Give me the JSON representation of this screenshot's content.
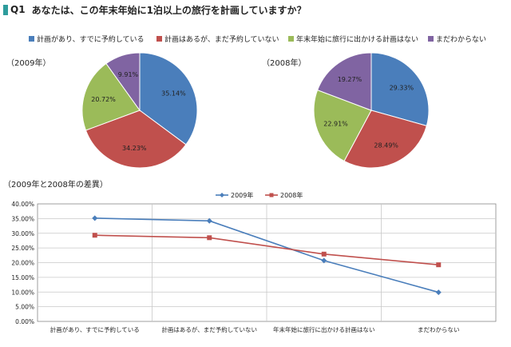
{
  "header": {
    "question_num": "Q1",
    "question_text": "あなたは、この年末年始に1泊以上の旅行を計画していますか？"
  },
  "categories": [
    "計画があり、すでに予約している",
    "計画はあるが、まだ予約していない",
    "年末年始に旅行に出かける計画はない",
    "まだわからない"
  ],
  "colors": [
    "#4a7ebb",
    "#c0504d",
    "#9bbb59",
    "#8064a2"
  ],
  "pie_2009": {
    "year_label": "（2009年）",
    "slice_labels": [
      "35.14%",
      "34.23%",
      "20.72%",
      "9.91%"
    ]
  },
  "pie_2008": {
    "year_label": "（2008年）",
    "slice_labels": [
      "29.33%",
      "28.49%",
      "22.91%",
      "19.27%"
    ]
  },
  "line_section_title": "（2009年と2008年の差異）",
  "line_y_ticks": [
    "0.00%",
    "5.00%",
    "10.00%",
    "15.00%",
    "20.00%",
    "25.00%",
    "30.00%",
    "35.00%",
    "40.00%"
  ],
  "line_colors": [
    "#4a7ebb",
    "#c0504d"
  ],
  "chart_data": [
    {
      "type": "pie",
      "title": "（2009年）",
      "categories": [
        "計画があり、すでに予約している",
        "計画はあるが、まだ予約していない",
        "年末年始に旅行に出かける計画はない",
        "まだわからない"
      ],
      "values": [
        35.14,
        34.23,
        20.72,
        9.91
      ],
      "legend": "top"
    },
    {
      "type": "pie",
      "title": "（2008年）",
      "categories": [
        "計画があり、すでに予約している",
        "計画はあるが、まだ予約していない",
        "年末年始に旅行に出かける計画はない",
        "まだわからない"
      ],
      "values": [
        29.33,
        28.49,
        22.91,
        19.27
      ],
      "legend": "top"
    },
    {
      "type": "line",
      "title": "（2009年と2008年の差異）",
      "categories": [
        "計画があり、すでに予約している",
        "計画はあるが、まだ予約していない",
        "年末年始に旅行に出かける計画はない",
        "まだわからない"
      ],
      "series": [
        {
          "name": "2009年",
          "values": [
            35.14,
            34.23,
            20.72,
            9.91
          ]
        },
        {
          "name": "2008年",
          "values": [
            29.33,
            28.49,
            22.91,
            19.27
          ]
        }
      ],
      "ylim": [
        0,
        40
      ],
      "grid": true,
      "legend": "top"
    }
  ]
}
